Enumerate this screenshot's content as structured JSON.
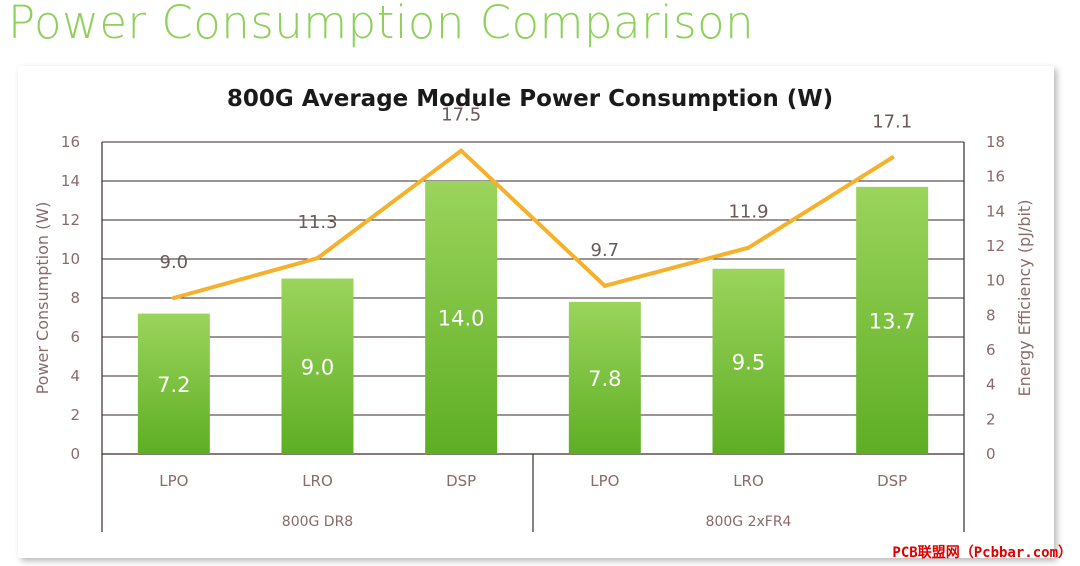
{
  "page": {
    "title": "Power Consumption Comparison",
    "watermark": "PCB联盟网（Pcbbar.com）"
  },
  "colors": {
    "title": "#8fd05a",
    "bar_top": "#9bd45c",
    "bar_bottom": "#5eae24",
    "line": "#f6b12a",
    "axis_text": "#8a6a6a",
    "grid": "#3a2a2a",
    "watermark": "#e00000"
  },
  "chart_data": {
    "type": "bar",
    "title": "800G Average Module Power Consumption (W)",
    "ylabel": "Power Consumption (W)",
    "y2label": "Energy Efficiency (pJ/bit)",
    "ylim": [
      0,
      16
    ],
    "y2lim": [
      0,
      18
    ],
    "yticks": [
      "0",
      "2",
      "4",
      "6",
      "8",
      "10",
      "12",
      "14",
      "16"
    ],
    "y2ticks": [
      "0",
      "2",
      "4",
      "6",
      "8",
      "10",
      "12",
      "14",
      "16",
      "18"
    ],
    "grid": true,
    "categories": [
      "LPO",
      "LRO",
      "DSP",
      "LPO",
      "LRO",
      "DSP"
    ],
    "groups": [
      {
        "label": "800G DR8",
        "count": 3
      },
      {
        "label": "800G 2xFR4",
        "count": 3
      }
    ],
    "series": [
      {
        "type": "bar",
        "axis": "left",
        "values": [
          7.2,
          9.0,
          14.0,
          7.8,
          9.5,
          13.7
        ],
        "labels": [
          "7.2",
          "9.0",
          "14.0",
          "7.8",
          "9.5",
          "13.7"
        ]
      },
      {
        "type": "line",
        "axis": "right",
        "values": [
          9.0,
          11.3,
          17.5,
          9.7,
          11.9,
          17.1
        ],
        "labels": [
          "9.0",
          "11.3",
          "17.5",
          "9.7",
          "11.9",
          "17.1"
        ]
      }
    ]
  }
}
